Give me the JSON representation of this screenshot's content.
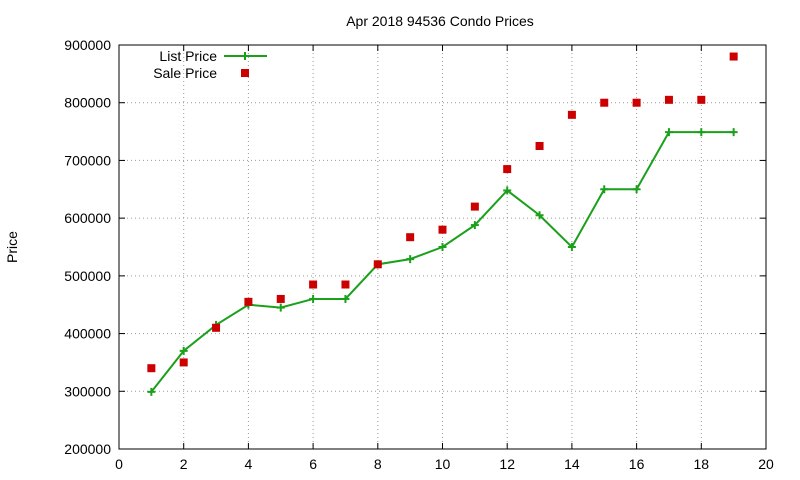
{
  "chart_data": {
    "type": "line",
    "title": "Apr 2018 94536 Condo Prices",
    "xlabel": "",
    "ylabel": "Price",
    "xlim": [
      0,
      20
    ],
    "ylim": [
      200000,
      900000
    ],
    "xticks": [
      0,
      2,
      4,
      6,
      8,
      10,
      12,
      14,
      16,
      18,
      20
    ],
    "yticks": [
      200000,
      300000,
      400000,
      500000,
      600000,
      700000,
      800000,
      900000
    ],
    "grid": true,
    "legend_position": "top-left",
    "series": [
      {
        "name": "List Price",
        "style": "line-with-plus-markers",
        "color": "#1aa01a",
        "x": [
          1,
          2,
          3,
          4,
          5,
          6,
          7,
          8,
          9,
          10,
          11,
          12,
          13,
          14,
          15,
          16,
          17,
          18,
          19
        ],
        "values": [
          299000,
          370000,
          415000,
          450000,
          445000,
          460000,
          460000,
          520000,
          529000,
          550000,
          588000,
          648000,
          605000,
          550000,
          650000,
          650000,
          749000,
          749000,
          749000
        ]
      },
      {
        "name": "Sale Price",
        "style": "square-markers",
        "color": "#cc0000",
        "x": [
          1,
          2,
          3,
          4,
          5,
          6,
          7,
          8,
          9,
          10,
          11,
          12,
          13,
          14,
          15,
          16,
          17,
          18,
          19
        ],
        "values": [
          340000,
          350000,
          410000,
          455000,
          460000,
          485000,
          485000,
          520000,
          567000,
          580000,
          620000,
          685000,
          725000,
          779000,
          800000,
          800000,
          805000,
          805000,
          880000
        ]
      }
    ]
  }
}
